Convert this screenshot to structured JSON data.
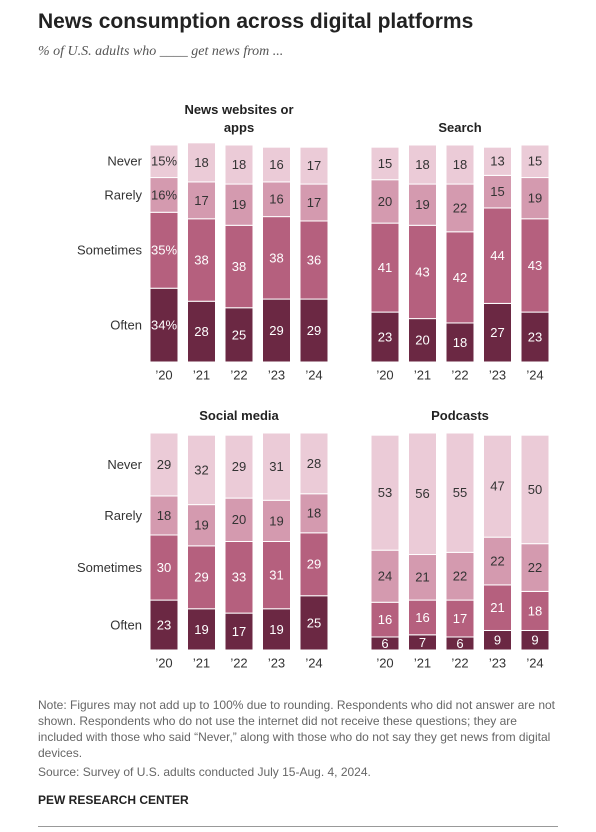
{
  "header": {
    "title": "News consumption across digital platforms",
    "subtitle": "% of U.S. adults who ____ get news from ..."
  },
  "chart_data": [
    {
      "type": "stacked_bar",
      "title": "News websites or apps",
      "categories": [
        "’20",
        "’21",
        "’22",
        "’23",
        "’24"
      ],
      "ylim": [
        0,
        100
      ],
      "series": [
        {
          "name": "Never",
          "color": "#ebcbd7",
          "values": [
            15,
            18,
            18,
            16,
            17
          ],
          "value_labels": [
            "15%",
            "18",
            "18",
            "16",
            "17"
          ]
        },
        {
          "name": "Rarely",
          "color": "#d49aaf",
          "values": [
            16,
            17,
            19,
            16,
            17
          ],
          "value_labels": [
            "16%",
            "17",
            "19",
            "16",
            "17"
          ]
        },
        {
          "name": "Sometimes",
          "color": "#b5607e",
          "values": [
            35,
            38,
            38,
            38,
            36
          ],
          "value_labels": [
            "35%",
            "38",
            "38",
            "38",
            "36"
          ]
        },
        {
          "name": "Often",
          "color": "#6b2843",
          "values": [
            34,
            28,
            25,
            29,
            29
          ],
          "value_labels": [
            "34%",
            "28",
            "25",
            "29",
            "29"
          ]
        }
      ]
    },
    {
      "type": "stacked_bar",
      "title": "Search",
      "categories": [
        "’20",
        "’21",
        "’22",
        "’23",
        "’24"
      ],
      "ylim": [
        0,
        100
      ],
      "series": [
        {
          "color": "#ebcbd7",
          "values": [
            15,
            18,
            18,
            13,
            15
          ]
        },
        {
          "color": "#d49aaf",
          "values": [
            20,
            19,
            22,
            15,
            19
          ]
        },
        {
          "color": "#b5607e",
          "values": [
            41,
            43,
            42,
            44,
            43
          ]
        },
        {
          "color": "#6b2843",
          "values": [
            23,
            20,
            18,
            27,
            23
          ]
        }
      ]
    },
    {
      "type": "stacked_bar",
      "title": "Social media",
      "categories": [
        "’20",
        "’21",
        "’22",
        "’23",
        "’24"
      ],
      "ylim": [
        0,
        100
      ],
      "series": [
        {
          "name": "Never",
          "color": "#ebcbd7",
          "values": [
            29,
            32,
            29,
            31,
            28
          ]
        },
        {
          "name": "Rarely",
          "color": "#d49aaf",
          "values": [
            18,
            19,
            20,
            19,
            18
          ]
        },
        {
          "name": "Sometimes",
          "color": "#b5607e",
          "values": [
            30,
            29,
            33,
            31,
            29
          ]
        },
        {
          "name": "Often",
          "color": "#6b2843",
          "values": [
            23,
            19,
            17,
            19,
            25
          ]
        }
      ]
    },
    {
      "type": "stacked_bar",
      "title": "Podcasts",
      "categories": [
        "’20",
        "’21",
        "’22",
        "’23",
        "’24"
      ],
      "ylim": [
        0,
        100
      ],
      "series": [
        {
          "color": "#ebcbd7",
          "values": [
            53,
            56,
            55,
            47,
            50
          ]
        },
        {
          "color": "#d49aaf",
          "values": [
            24,
            21,
            22,
            22,
            22
          ]
        },
        {
          "color": "#b5607e",
          "values": [
            16,
            16,
            17,
            21,
            18
          ]
        },
        {
          "color": "#6b2843",
          "values": [
            6,
            7,
            6,
            9,
            9
          ]
        }
      ]
    }
  ],
  "footer": {
    "note": "Note: Figures may not add up to 100% due to rounding. Respondents who did not answer are not shown. Respondents who do not use the internet did not receive these questions; they are included with those who said “Never,” along with those who do not say they get news from digital devices.",
    "source": "Source: Survey of U.S. adults conducted July 15-Aug. 4, 2024.",
    "credit": "PEW RESEARCH CENTER"
  }
}
